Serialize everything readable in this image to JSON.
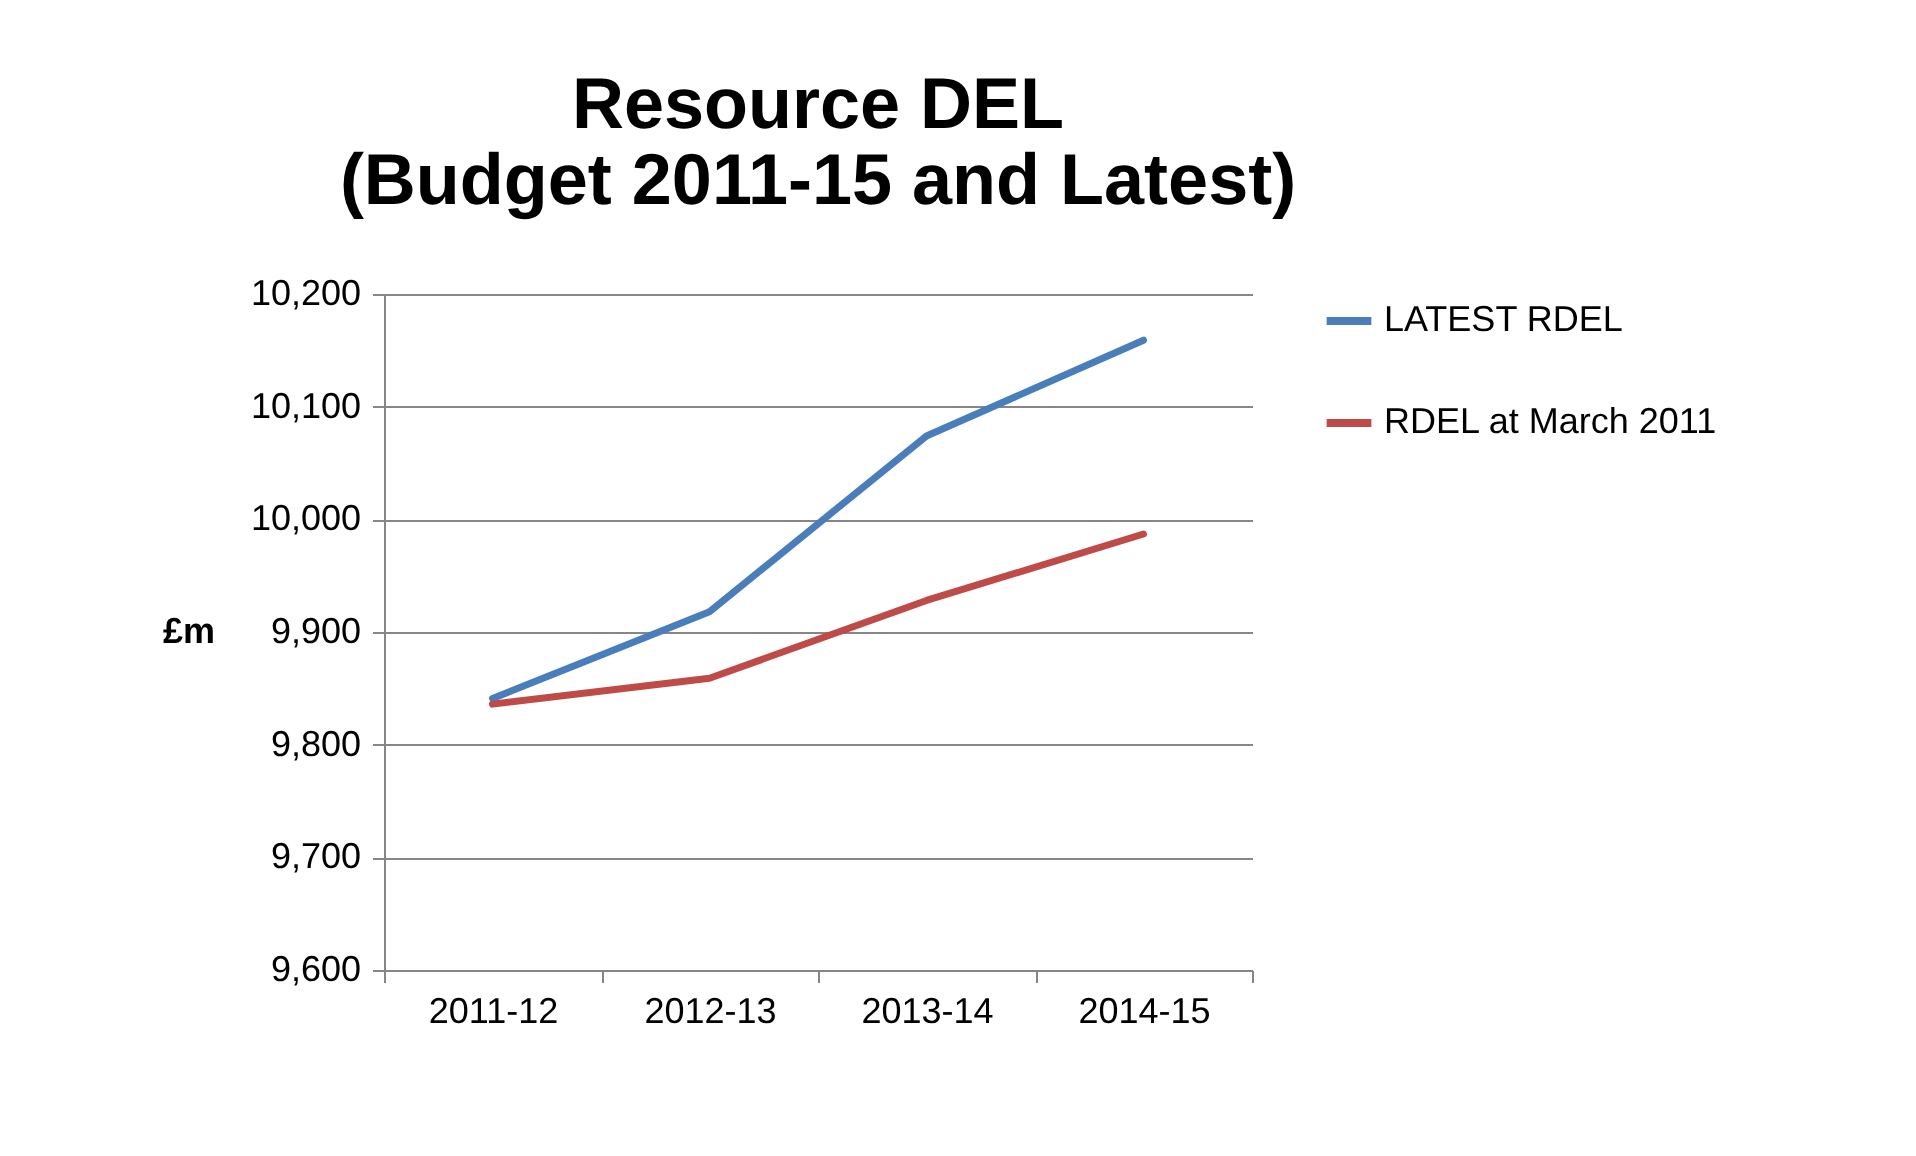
{
  "chart_data": {
    "type": "line",
    "title": [
      "Resource DEL",
      "(Budget 2011-15 and Latest)"
    ],
    "ylabel": "£m",
    "categories": [
      "2011-12",
      "2012-13",
      "2013-14",
      "2014-15"
    ],
    "series": [
      {
        "name": "LATEST RDEL",
        "color": "#4a7ebb",
        "values": [
          9841,
          9918,
          10074,
          10159
        ]
      },
      {
        "name": "RDEL at March 2011",
        "color": "#be4b48",
        "values": [
          9836,
          9859,
          9928,
          9987
        ]
      }
    ],
    "ylim": [
      9600,
      10200
    ],
    "yticks": [
      {
        "value": 9600,
        "label": "9,600"
      },
      {
        "value": 9700,
        "label": "9,700"
      },
      {
        "value": 9800,
        "label": "9,800"
      },
      {
        "value": 9900,
        "label": "9,900"
      },
      {
        "value": 10000,
        "label": "10,000"
      },
      {
        "value": 10100,
        "label": "10,100"
      },
      {
        "value": 10200,
        "label": "10,200"
      }
    ],
    "grid": "y",
    "legend": "right",
    "marker": "none",
    "line_style": "solid"
  }
}
